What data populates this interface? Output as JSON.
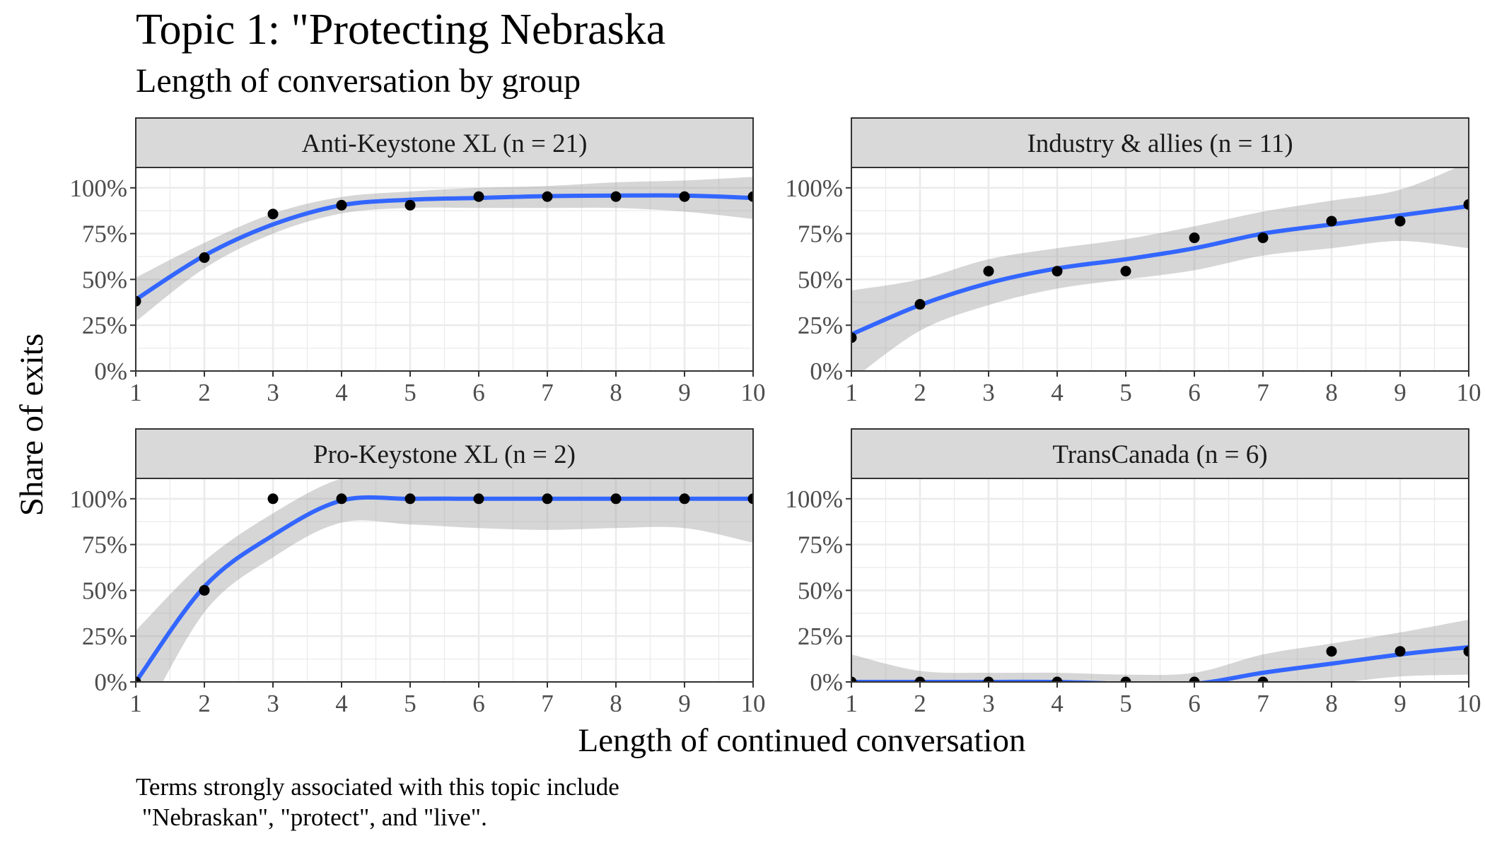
{
  "chart_data": {
    "type": "scatter",
    "title": "Topic 1: \"Protecting Nebraska",
    "subtitle": "Length of conversation by group",
    "xlabel": "Length of continued conversation",
    "ylabel": "Share of exits",
    "caption_lines": [
      "Terms strongly associated with this topic include",
      " \"Nebraskan\", \"protect\", and \"live\"."
    ],
    "xlim": [
      1,
      10
    ],
    "ylim": [
      0,
      1
    ],
    "x_ticks": [
      "1",
      "2",
      "3",
      "4",
      "5",
      "6",
      "7",
      "8",
      "9",
      "10"
    ],
    "y_ticks": [
      "0%",
      "25%",
      "50%",
      "75%",
      "100%"
    ],
    "smooth_color": "#3366FF",
    "band_color": "#999999",
    "point_color": "#000000",
    "strip_color": "#D9D9D9",
    "grid_color": "#EBEBEB",
    "panels": [
      {
        "label": "Anti-Keystone XL (n = 21)",
        "x": [
          1,
          2,
          3,
          4,
          5,
          6,
          7,
          8,
          9,
          10
        ],
        "points": [
          0.381,
          0.619,
          0.857,
          0.905,
          0.905,
          0.952,
          0.952,
          0.952,
          0.952,
          0.952
        ],
        "smooth": [
          0.39,
          0.63,
          0.8,
          0.905,
          0.935,
          0.945,
          0.955,
          0.958,
          0.958,
          0.945
        ],
        "band_lower": [
          0.27,
          0.56,
          0.75,
          0.86,
          0.89,
          0.89,
          0.89,
          0.89,
          0.87,
          0.83
        ],
        "band_upper": [
          0.51,
          0.7,
          0.86,
          0.95,
          0.98,
          1.0,
          1.01,
          1.03,
          1.04,
          1.06
        ]
      },
      {
        "label": "Industry & allies (n = 11)",
        "x": [
          1,
          2,
          3,
          4,
          5,
          6,
          7,
          8,
          9,
          10
        ],
        "points": [
          0.182,
          0.364,
          0.545,
          0.545,
          0.545,
          0.727,
          0.727,
          0.818,
          0.818,
          0.909
        ],
        "smooth": [
          0.2,
          0.36,
          0.48,
          0.56,
          0.61,
          0.67,
          0.75,
          0.8,
          0.85,
          0.9
        ],
        "band_lower": [
          -0.05,
          0.22,
          0.36,
          0.45,
          0.5,
          0.55,
          0.63,
          0.67,
          0.71,
          0.67
        ],
        "band_upper": [
          0.44,
          0.5,
          0.61,
          0.67,
          0.72,
          0.79,
          0.87,
          0.93,
          0.99,
          1.14
        ]
      },
      {
        "label": "Pro-Keystone XL (n = 2)",
        "x": [
          1,
          2,
          3,
          4,
          5,
          6,
          7,
          8,
          9,
          10
        ],
        "points": [
          0.0,
          0.5,
          1.0,
          1.0,
          1.0,
          1.0,
          1.0,
          1.0,
          1.0,
          1.0
        ],
        "smooth": [
          0.0,
          0.52,
          0.8,
          0.99,
          1.0,
          1.0,
          1.0,
          1.0,
          1.0,
          1.0
        ],
        "band_lower": [
          -0.28,
          0.38,
          0.68,
          0.87,
          0.86,
          0.84,
          0.83,
          0.84,
          0.84,
          0.76
        ],
        "band_upper": [
          0.28,
          0.66,
          0.92,
          1.11,
          1.14,
          1.16,
          1.17,
          1.16,
          1.16,
          1.24
        ]
      },
      {
        "label": "TransCanada (n = 6)",
        "x": [
          1,
          2,
          3,
          4,
          5,
          6,
          7,
          8,
          9,
          10
        ],
        "points": [
          0.0,
          0.0,
          0.0,
          0.0,
          0.0,
          0.0,
          0.0,
          0.167,
          0.167,
          0.167
        ],
        "smooth": [
          0.0,
          0.0,
          0.0,
          0.0,
          -0.01,
          -0.01,
          0.05,
          0.1,
          0.15,
          0.19
        ],
        "band_lower": [
          -0.15,
          -0.06,
          -0.05,
          -0.05,
          -0.06,
          -0.07,
          -0.05,
          -0.01,
          0.03,
          0.04
        ],
        "band_upper": [
          0.15,
          0.06,
          0.05,
          0.05,
          0.04,
          0.05,
          0.15,
          0.21,
          0.27,
          0.34
        ]
      }
    ]
  }
}
